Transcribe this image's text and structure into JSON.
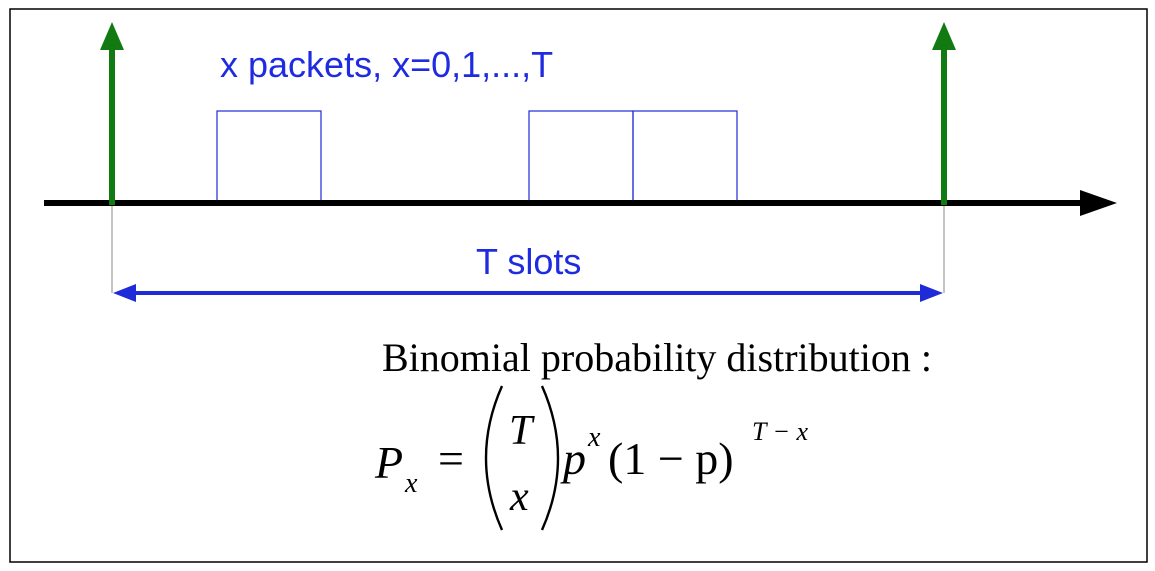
{
  "packets_label": "x packets, x=0,1,...,T",
  "slots_label": "T slots",
  "distribution_label": "Binomial probability distribution :",
  "formula": {
    "P": "P",
    "P_sub": "x",
    "equals": "=",
    "binom_top": "T",
    "binom_bottom": "x",
    "p1": "p",
    "p1_sup": "x",
    "factor": "(1 − p)",
    "factor_sup": "T − x"
  },
  "colors": {
    "frame": "#000000",
    "axis": "#000000",
    "marker": "#117a11",
    "packet": "#1f2bd6",
    "label": "#1f2be0",
    "formula": "#000000"
  }
}
